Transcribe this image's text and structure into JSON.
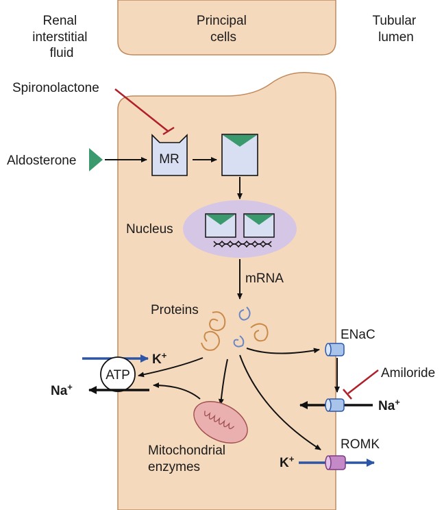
{
  "header": {
    "left": [
      "Renal",
      "interstitial",
      "fluid"
    ],
    "center": [
      "Principal",
      "cells"
    ],
    "right": [
      "Tubular",
      "lumen"
    ]
  },
  "labels": {
    "spironolactone": "Spironolactone",
    "aldosterone": "Aldosterone",
    "mr": "MR",
    "nucleus": "Nucleus",
    "mrna": "mRNA",
    "proteins": "Proteins",
    "enac": "ENaC",
    "amiloride": "Amiloride",
    "na_right": "Na",
    "na_left": "Na",
    "k_left": "K",
    "k_right": "K",
    "plus": "+",
    "atp": "ATP",
    "romk": "ROMK",
    "mito": [
      "Mitochondrial",
      "enzymes"
    ]
  },
  "colors": {
    "cell_fill": "#f5d9bd",
    "cell_stroke": "#c08a5c",
    "receptor_fill": "#d9dff2",
    "aldosterone_green": "#3a9a6e",
    "nucleus_fill": "#d6c6e6",
    "inhibitor_red": "#b0202a",
    "blue_arrow": "#2a55a8",
    "enac_blue": "#a8c4ea",
    "romk_purple": "#c48ac8",
    "mito_fill": "#eab0b0",
    "protein_orange": "#c98a4a",
    "protein_blue": "#6a86c4"
  }
}
